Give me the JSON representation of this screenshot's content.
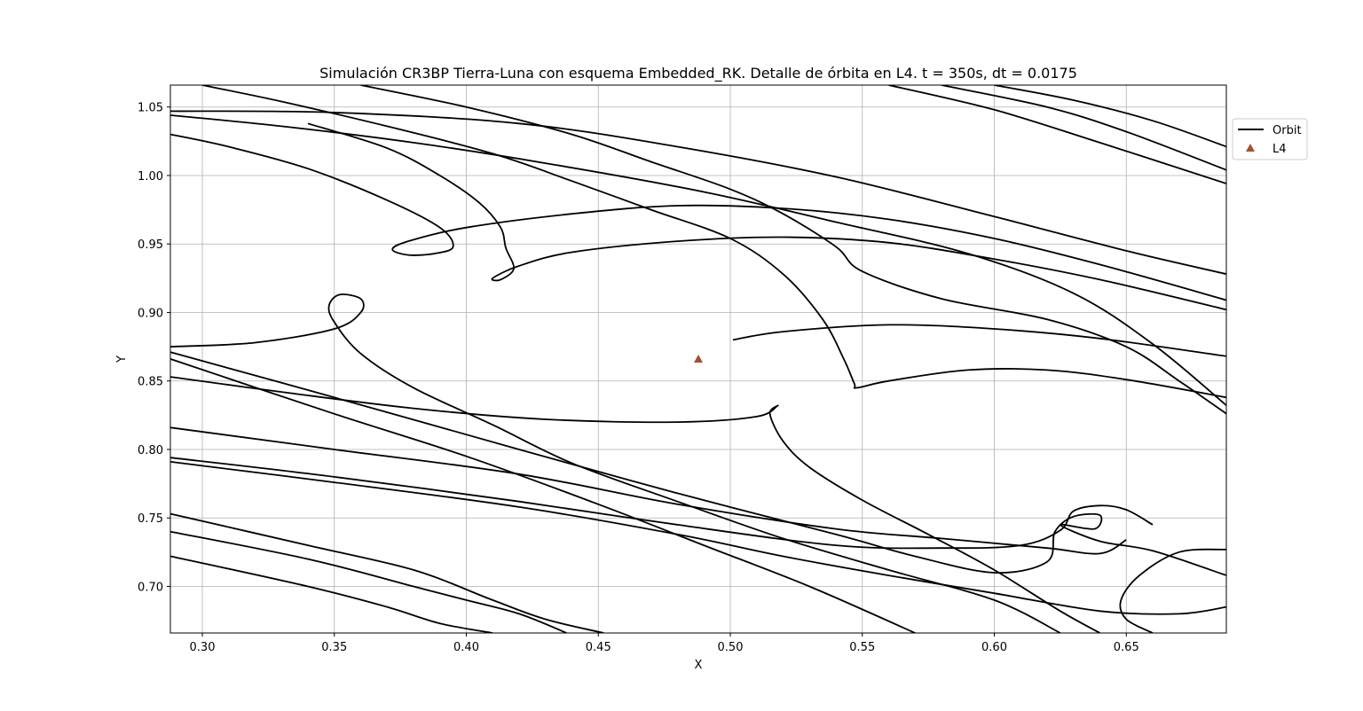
{
  "chart_data": {
    "type": "line",
    "title": "Simulación CR3BP Tierra-Luna con esquema Embedded_RK. Detalle de órbita en L4. t = 350s, dt = 0.0175",
    "xlabel": "X",
    "ylabel": "Y",
    "xlim": [
      0.2879,
      0.6879
    ],
    "ylim": [
      0.666,
      1.066
    ],
    "xticks": [
      "0.30",
      "0.35",
      "0.40",
      "0.45",
      "0.50",
      "0.55",
      "0.60",
      "0.65"
    ],
    "yticks": [
      "0.70",
      "0.75",
      "0.80",
      "0.85",
      "0.90",
      "0.95",
      "1.00",
      "1.05"
    ],
    "grid": true,
    "legend_position": "upper right, outside plot",
    "series": [
      {
        "name": "Orbit",
        "kind": "line",
        "color": "#000000",
        "segments": [
          [
            [
              0.288,
              1.047
            ],
            [
              0.35,
              1.046
            ],
            [
              0.42,
              1.038
            ],
            [
              0.48,
              1.021
            ],
            [
              0.54,
              0.999
            ],
            [
              0.6,
              0.97
            ],
            [
              0.65,
              0.945
            ],
            [
              0.688,
              0.928
            ]
          ],
          [
            [
              0.288,
              1.044
            ],
            [
              0.33,
              1.036
            ],
            [
              0.38,
              1.024
            ],
            [
              0.43,
              1.009
            ],
            [
              0.49,
              0.988
            ],
            [
              0.54,
              0.966
            ],
            [
              0.59,
              0.943
            ],
            [
              0.63,
              0.914
            ],
            [
              0.66,
              0.877
            ],
            [
              0.688,
              0.832
            ]
          ],
          [
            [
              0.288,
              1.03
            ],
            [
              0.31,
              1.021
            ],
            [
              0.34,
              1.005
            ],
            [
              0.37,
              0.982
            ],
            [
              0.39,
              0.962
            ],
            [
              0.395,
              0.948
            ],
            [
              0.388,
              0.943
            ],
            [
              0.378,
              0.942
            ],
            [
              0.372,
              0.946
            ],
            [
              0.378,
              0.952
            ],
            [
              0.4,
              0.962
            ],
            [
              0.44,
              0.972
            ],
            [
              0.48,
              0.978
            ],
            [
              0.52,
              0.976
            ],
            [
              0.56,
              0.968
            ],
            [
              0.6,
              0.954
            ],
            [
              0.64,
              0.935
            ],
            [
              0.688,
              0.909
            ]
          ],
          [
            [
              0.3,
              1.066
            ],
            [
              0.33,
              1.054
            ],
            [
              0.37,
              1.036
            ],
            [
              0.41,
              1.016
            ],
            [
              0.44,
              0.996
            ],
            [
              0.47,
              0.975
            ],
            [
              0.5,
              0.954
            ],
            [
              0.52,
              0.928
            ],
            [
              0.535,
              0.895
            ],
            [
              0.543,
              0.866
            ],
            [
              0.547,
              0.848
            ],
            [
              0.548,
              0.845
            ],
            [
              0.56,
              0.85
            ],
            [
              0.59,
              0.858
            ],
            [
              0.62,
              0.858
            ],
            [
              0.65,
              0.851
            ],
            [
              0.688,
              0.838
            ]
          ],
          [
            [
              0.36,
              1.066
            ],
            [
              0.4,
              1.05
            ],
            [
              0.44,
              1.03
            ],
            [
              0.47,
              1.01
            ],
            [
              0.5,
              0.99
            ],
            [
              0.52,
              0.972
            ],
            [
              0.54,
              0.948
            ],
            [
              0.55,
              0.93
            ],
            [
              0.58,
              0.91
            ],
            [
              0.62,
              0.895
            ],
            [
              0.65,
              0.875
            ],
            [
              0.67,
              0.85
            ],
            [
              0.688,
              0.826
            ]
          ],
          [
            [
              0.34,
              1.038
            ],
            [
              0.37,
              1.02
            ],
            [
              0.39,
              1.0
            ],
            [
              0.405,
              0.98
            ],
            [
              0.413,
              0.962
            ],
            [
              0.415,
              0.947
            ],
            [
              0.418,
              0.932
            ],
            [
              0.413,
              0.924
            ],
            [
              0.41,
              0.925
            ],
            [
              0.42,
              0.934
            ],
            [
              0.44,
              0.944
            ],
            [
              0.48,
              0.952
            ],
            [
              0.52,
              0.955
            ],
            [
              0.56,
              0.951
            ],
            [
              0.6,
              0.939
            ],
            [
              0.64,
              0.924
            ],
            [
              0.688,
              0.902
            ]
          ],
          [
            [
              0.288,
              0.875
            ],
            [
              0.32,
              0.878
            ],
            [
              0.35,
              0.888
            ],
            [
              0.36,
              0.9
            ],
            [
              0.36,
              0.91
            ],
            [
              0.352,
              0.913
            ],
            [
              0.348,
              0.905
            ],
            [
              0.35,
              0.893
            ],
            [
              0.36,
              0.87
            ],
            [
              0.38,
              0.845
            ],
            [
              0.41,
              0.818
            ],
            [
              0.44,
              0.79
            ],
            [
              0.48,
              0.762
            ],
            [
              0.52,
              0.735
            ],
            [
              0.56,
              0.712
            ],
            [
              0.6,
              0.69
            ],
            [
              0.625,
              0.666
            ]
          ],
          [
            [
              0.288,
              0.853
            ],
            [
              0.33,
              0.842
            ],
            [
              0.38,
              0.83
            ],
            [
              0.43,
              0.822
            ],
            [
              0.48,
              0.82
            ],
            [
              0.51,
              0.824
            ],
            [
              0.518,
              0.832
            ],
            [
              0.515,
              0.826
            ],
            [
              0.52,
              0.806
            ],
            [
              0.53,
              0.787
            ],
            [
              0.55,
              0.763
            ],
            [
              0.575,
              0.738
            ],
            [
              0.6,
              0.712
            ],
            [
              0.625,
              0.682
            ],
            [
              0.64,
              0.666
            ]
          ],
          [
            [
              0.501,
              0.88
            ],
            [
              0.52,
              0.886
            ],
            [
              0.56,
              0.891
            ],
            [
              0.6,
              0.888
            ],
            [
              0.64,
              0.881
            ],
            [
              0.688,
              0.868
            ]
          ],
          [
            [
              0.288,
              0.871
            ],
            [
              0.35,
              0.838
            ],
            [
              0.42,
              0.8
            ],
            [
              0.48,
              0.768
            ],
            [
              0.54,
              0.738
            ],
            [
              0.57,
              0.722
            ],
            [
              0.6,
              0.71
            ],
            [
              0.62,
              0.718
            ],
            [
              0.623,
              0.74
            ],
            [
              0.63,
              0.751
            ],
            [
              0.64,
              0.752
            ],
            [
              0.638,
              0.742
            ],
            [
              0.625,
              0.745
            ],
            [
              0.64,
              0.733
            ],
            [
              0.66,
              0.726
            ],
            [
              0.688,
              0.708
            ]
          ],
          [
            [
              0.288,
              0.816
            ],
            [
              0.35,
              0.8
            ],
            [
              0.42,
              0.782
            ],
            [
              0.48,
              0.76
            ],
            [
              0.54,
              0.742
            ],
            [
              0.58,
              0.735
            ],
            [
              0.62,
              0.728
            ],
            [
              0.64,
              0.724
            ],
            [
              0.65,
              0.734
            ]
          ],
          [
            [
              0.288,
              0.794
            ],
            [
              0.35,
              0.78
            ],
            [
              0.42,
              0.762
            ],
            [
              0.48,
              0.745
            ],
            [
              0.54,
              0.73
            ],
            [
              0.58,
              0.728
            ],
            [
              0.61,
              0.73
            ],
            [
              0.625,
              0.741
            ],
            [
              0.63,
              0.755
            ],
            [
              0.64,
              0.759
            ],
            [
              0.65,
              0.756
            ],
            [
              0.66,
              0.745
            ]
          ],
          [
            [
              0.288,
              0.791
            ],
            [
              0.35,
              0.776
            ],
            [
              0.42,
              0.758
            ],
            [
              0.48,
              0.738
            ],
            [
              0.52,
              0.722
            ],
            [
              0.56,
              0.708
            ],
            [
              0.6,
              0.695
            ],
            [
              0.64,
              0.682
            ],
            [
              0.67,
              0.68
            ],
            [
              0.688,
              0.685
            ]
          ],
          [
            [
              0.288,
              0.866
            ],
            [
              0.35,
              0.826
            ],
            [
              0.4,
              0.795
            ],
            [
              0.45,
              0.76
            ],
            [
              0.49,
              0.73
            ],
            [
              0.53,
              0.7
            ],
            [
              0.57,
              0.666
            ]
          ],
          [
            [
              0.288,
              0.753
            ],
            [
              0.34,
              0.73
            ],
            [
              0.38,
              0.712
            ],
            [
              0.41,
              0.69
            ],
            [
              0.43,
              0.676
            ],
            [
              0.452,
              0.666
            ]
          ],
          [
            [
              0.288,
              0.74
            ],
            [
              0.34,
              0.72
            ],
            [
              0.38,
              0.7
            ],
            [
              0.4,
              0.69
            ],
            [
              0.42,
              0.68
            ],
            [
              0.438,
              0.666
            ]
          ],
          [
            [
              0.288,
              0.722
            ],
            [
              0.34,
              0.7
            ],
            [
              0.37,
              0.685
            ],
            [
              0.39,
              0.673
            ],
            [
              0.41,
              0.666
            ]
          ],
          [
            [
              0.66,
              0.666
            ],
            [
              0.65,
              0.676
            ],
            [
              0.648,
              0.69
            ],
            [
              0.655,
              0.708
            ],
            [
              0.67,
              0.725
            ],
            [
              0.688,
              0.727
            ]
          ],
          [
            [
              0.6,
              1.066
            ],
            [
              0.63,
              1.055
            ],
            [
              0.66,
              1.04
            ],
            [
              0.688,
              1.021
            ]
          ],
          [
            [
              0.58,
              1.066
            ],
            [
              0.62,
              1.05
            ],
            [
              0.65,
              1.032
            ],
            [
              0.688,
              1.004
            ]
          ],
          [
            [
              0.56,
              1.066
            ],
            [
              0.6,
              1.048
            ],
            [
              0.64,
              1.024
            ],
            [
              0.688,
              0.994
            ]
          ]
        ]
      },
      {
        "name": "L4",
        "kind": "marker",
        "marker": "triangle",
        "color": "#a0522d",
        "points": [
          [
            0.4879,
            0.866
          ]
        ]
      }
    ]
  }
}
